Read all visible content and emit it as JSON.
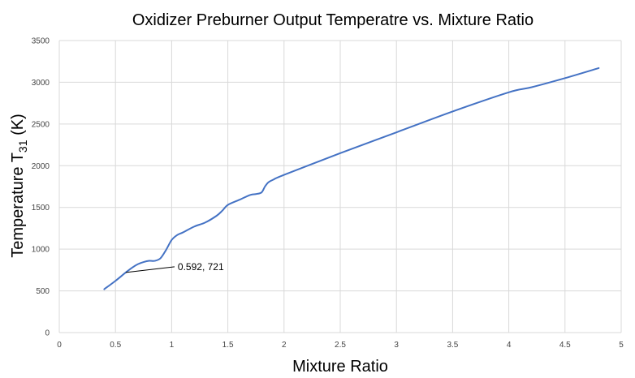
{
  "chart_data": {
    "type": "line",
    "title": "Oxidizer Preburner Output Temperatre vs. Mixture Ratio",
    "xlabel": "Mixture Ratio",
    "ylabel_main": "Temperature T",
    "ylabel_sub": "31",
    "ylabel_unit": " (K)",
    "xlim": [
      0,
      5
    ],
    "ylim": [
      0,
      3500
    ],
    "x_ticks": [
      "0",
      "0.5",
      "1",
      "1.5",
      "2",
      "2.5",
      "3",
      "3.5",
      "4",
      "4.5",
      "5"
    ],
    "y_ticks": [
      "0",
      "500",
      "1000",
      "1500",
      "2000",
      "2500",
      "3000",
      "3500"
    ],
    "grid": "vertical and horizontal",
    "line_color": "#4472c4",
    "series": [
      {
        "x": [
          0.4,
          0.5,
          0.592,
          0.65,
          0.7,
          0.75,
          0.8,
          0.85,
          0.9,
          0.95,
          1.0,
          1.05,
          1.1,
          1.2,
          1.3,
          1.4,
          1.45,
          1.5,
          1.6,
          1.7,
          1.75,
          1.8,
          1.83,
          1.86,
          1.9,
          2.0,
          2.5,
          3.0,
          3.5,
          4.0,
          4.2,
          4.5,
          4.8
        ],
        "y": [
          520,
          620,
          721,
          780,
          820,
          845,
          860,
          860,
          890,
          990,
          1110,
          1170,
          1200,
          1270,
          1320,
          1400,
          1460,
          1530,
          1590,
          1650,
          1660,
          1680,
          1750,
          1800,
          1830,
          1890,
          2150,
          2400,
          2650,
          2880,
          2940,
          3050,
          3170
        ]
      }
    ],
    "annotation": {
      "x": 0.592,
      "y": 721,
      "text": "0.592, 721"
    }
  }
}
